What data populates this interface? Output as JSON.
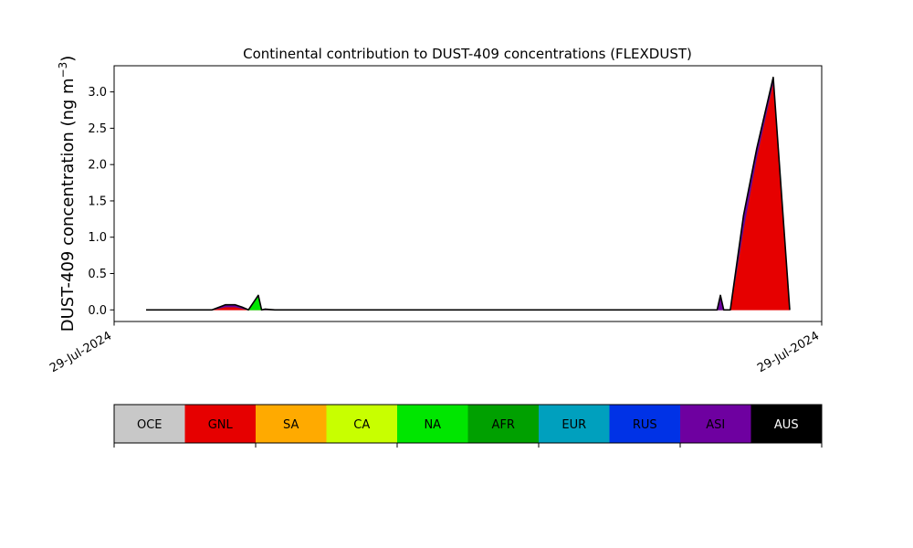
{
  "chart_data": {
    "type": "area",
    "title": "Continental contribution to DUST-409 concentrations (FLEXDUST)",
    "ylabel": "DUST-409 concentration (ng m",
    "ylabel_unit_sup": "−3",
    "ylabel_close": ")",
    "xlabel": "",
    "x_tick_labels": [
      "29-Jul-2024",
      "29-Jul-2024"
    ],
    "y_ticks": [
      "0.0",
      "0.5",
      "1.0",
      "1.5",
      "2.0",
      "2.5",
      "3.0"
    ],
    "ylim": [
      -0.16,
      3.36
    ],
    "grid": false,
    "stacked": true,
    "x": [
      0,
      4,
      9,
      10,
      11,
      14,
      16,
      17,
      20,
      24,
      27,
      29,
      31,
      34,
      35,
      36,
      39,
      60,
      65,
      70,
      76,
      80,
      90,
      110,
      120,
      140,
      166,
      169,
      171,
      172,
      173,
      174,
      175,
      177,
      181,
      185,
      190,
      195
    ],
    "series": [
      {
        "name": "OCE",
        "color": "#c8c8c8",
        "values": [
          0,
          0,
          0,
          0,
          0,
          0,
          0,
          0,
          0,
          0,
          0,
          0,
          0,
          0,
          0,
          0,
          0,
          0,
          0,
          0,
          0,
          0,
          0,
          0,
          0,
          0,
          0,
          0,
          0,
          0,
          0,
          0,
          0,
          0,
          0,
          0,
          0,
          0
        ]
      },
      {
        "name": "GNL",
        "color": "#e60000",
        "values": [
          0,
          0,
          0,
          0,
          0,
          0,
          0,
          0,
          0,
          0.04,
          0.04,
          0.02,
          0,
          0,
          0,
          0,
          0,
          0,
          0,
          0,
          0,
          0,
          0,
          0,
          0,
          0,
          0,
          0,
          0,
          0,
          0,
          0,
          0,
          0,
          1.12,
          2.1,
          3.14,
          0
        ]
      },
      {
        "name": "SA",
        "color": "#ffaa00",
        "values": [
          0,
          0,
          0,
          0,
          0,
          0,
          0,
          0,
          0,
          0,
          0,
          0,
          0,
          0,
          0,
          0,
          0,
          0,
          0,
          0,
          0,
          0,
          0,
          0,
          0,
          0,
          0,
          0,
          0,
          0,
          0,
          0,
          0,
          0,
          0,
          0,
          0,
          0
        ]
      },
      {
        "name": "CA",
        "color": "#c8ff00",
        "values": [
          0,
          0,
          0,
          0,
          0,
          0,
          0,
          0,
          0,
          0,
          0,
          0,
          0,
          0,
          0,
          0,
          0,
          0,
          0,
          0,
          0,
          0,
          0,
          0,
          0,
          0,
          0,
          0,
          0,
          0,
          0,
          0,
          0,
          0,
          0,
          0,
          0,
          0
        ]
      },
      {
        "name": "NA",
        "color": "#00e600",
        "values": [
          0,
          0,
          0,
          0,
          0,
          0,
          0,
          0,
          0,
          0,
          0,
          0,
          0,
          0.2,
          0,
          0,
          0,
          0,
          0,
          0,
          0,
          0,
          0,
          0,
          0,
          0,
          0,
          0,
          0,
          0,
          0,
          0,
          0,
          0,
          0,
          0,
          0,
          0
        ]
      },
      {
        "name": "AFR",
        "color": "#00a000",
        "values": [
          0,
          0,
          0,
          0,
          0,
          0,
          0,
          0,
          0,
          0,
          0,
          0,
          0,
          0,
          0,
          0,
          0,
          0,
          0,
          0,
          0,
          0,
          0,
          0,
          0,
          0,
          0,
          0,
          0,
          0,
          0,
          0,
          0,
          0,
          0,
          0,
          0,
          0
        ]
      },
      {
        "name": "EUR",
        "color": "#00a0be",
        "values": [
          0,
          0,
          0,
          0,
          0,
          0,
          0,
          0,
          0,
          0,
          0,
          0,
          0,
          0,
          0,
          0,
          0,
          0,
          0,
          0,
          0,
          0,
          0,
          0,
          0,
          0,
          0,
          0,
          0,
          0,
          0,
          0,
          0,
          0,
          0,
          0,
          0,
          0
        ]
      },
      {
        "name": "RUS",
        "color": "#0032e6",
        "values": [
          0,
          0,
          0,
          0,
          0,
          0,
          0,
          0,
          0,
          0,
          0,
          0,
          0,
          0,
          0,
          0,
          0,
          0,
          0,
          0,
          0,
          0,
          0,
          0,
          0,
          0,
          0,
          0,
          0,
          0,
          0,
          0,
          0,
          0,
          0,
          0,
          0,
          0
        ]
      },
      {
        "name": "ASI",
        "color": "#6e00a0",
        "values": [
          0,
          0,
          0,
          0,
          0,
          0,
          0,
          0,
          0,
          0.03,
          0.03,
          0.02,
          0,
          0,
          0,
          0.01,
          0,
          0,
          0,
          0,
          0,
          0,
          0,
          0,
          0,
          0,
          0,
          0,
          0,
          0,
          0,
          0.2,
          0,
          0,
          0.18,
          0.12,
          0.06,
          0
        ]
      },
      {
        "name": "AUS",
        "color": "#000000",
        "values": [
          0,
          0,
          0,
          0,
          0,
          0,
          0,
          0,
          0,
          0,
          0,
          0,
          0,
          0,
          0,
          0,
          0,
          0,
          0,
          0,
          0,
          0,
          0,
          0,
          0,
          0,
          0,
          0,
          0,
          0,
          0,
          0,
          0,
          0,
          0,
          0,
          0,
          0
        ]
      }
    ],
    "total_line_color": "#000000"
  },
  "legend": {
    "items": [
      {
        "label": "OCE",
        "color": "#c8c8c8",
        "text_color": "#000000"
      },
      {
        "label": "GNL",
        "color": "#e60000",
        "text_color": "#000000"
      },
      {
        "label": "SA",
        "color": "#ffaa00",
        "text_color": "#000000"
      },
      {
        "label": "CA",
        "color": "#c8ff00",
        "text_color": "#000000"
      },
      {
        "label": "NA",
        "color": "#00e600",
        "text_color": "#000000"
      },
      {
        "label": "AFR",
        "color": "#00a000",
        "text_color": "#000000"
      },
      {
        "label": "EUR",
        "color": "#00a0be",
        "text_color": "#000000"
      },
      {
        "label": "RUS",
        "color": "#0032e6",
        "text_color": "#000000"
      },
      {
        "label": "ASI",
        "color": "#6e00a0",
        "text_color": "#000000"
      },
      {
        "label": "AUS",
        "color": "#000000",
        "text_color": "#ffffff"
      }
    ]
  }
}
